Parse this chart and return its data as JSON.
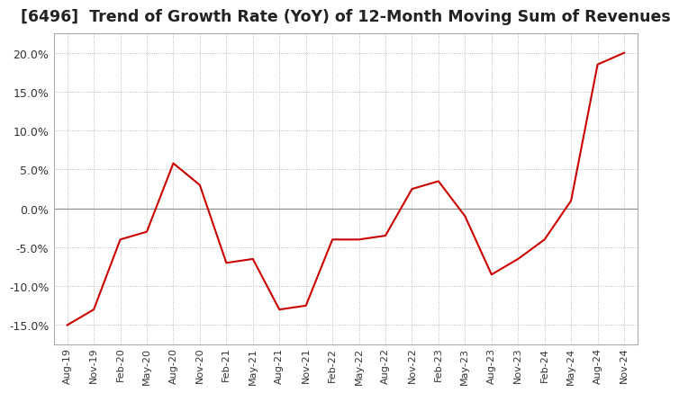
{
  "title": "[6496]  Trend of Growth Rate (YoY) of 12-Month Moving Sum of Revenues",
  "title_fontsize": 12.5,
  "line_color": "#cc0000",
  "background_color": "#ffffff",
  "ylim": [
    -0.175,
    0.225
  ],
  "yticks": [
    -0.15,
    -0.1,
    -0.05,
    0.0,
    0.05,
    0.1,
    0.15,
    0.2
  ],
  "ytick_labels": [
    "-15.0%",
    "-10.0%",
    "-5.0%",
    "0.0%",
    "5.0%",
    "10.0%",
    "15.0%",
    "20.0%"
  ],
  "dates": [
    "Aug-19",
    "Nov-19",
    "Feb-20",
    "May-20",
    "Aug-20",
    "Nov-20",
    "Feb-21",
    "May-21",
    "Aug-21",
    "Nov-21",
    "Feb-22",
    "May-22",
    "Aug-22",
    "Nov-22",
    "Feb-23",
    "May-23",
    "Aug-23",
    "Nov-23",
    "Feb-24",
    "May-24",
    "Aug-24",
    "Nov-24"
  ],
  "values": [
    -0.15,
    -0.13,
    -0.04,
    -0.03,
    0.058,
    0.03,
    -0.07,
    -0.065,
    -0.13,
    -0.125,
    -0.04,
    -0.04,
    -0.035,
    0.025,
    0.035,
    -0.01,
    -0.085,
    -0.065,
    -0.04,
    0.01,
    0.185,
    0.2
  ],
  "xtick_labels": [
    "Aug-19",
    "Nov-19",
    "Feb-20",
    "May-20",
    "Aug-20",
    "Nov-20",
    "Feb-21",
    "May-21",
    "Aug-21",
    "Nov-21",
    "Feb-22",
    "May-22",
    "Aug-22",
    "Nov-22",
    "Feb-23",
    "May-23",
    "Aug-23",
    "Nov-23",
    "Feb-24",
    "May-24",
    "Aug-24",
    "Nov-24"
  ]
}
